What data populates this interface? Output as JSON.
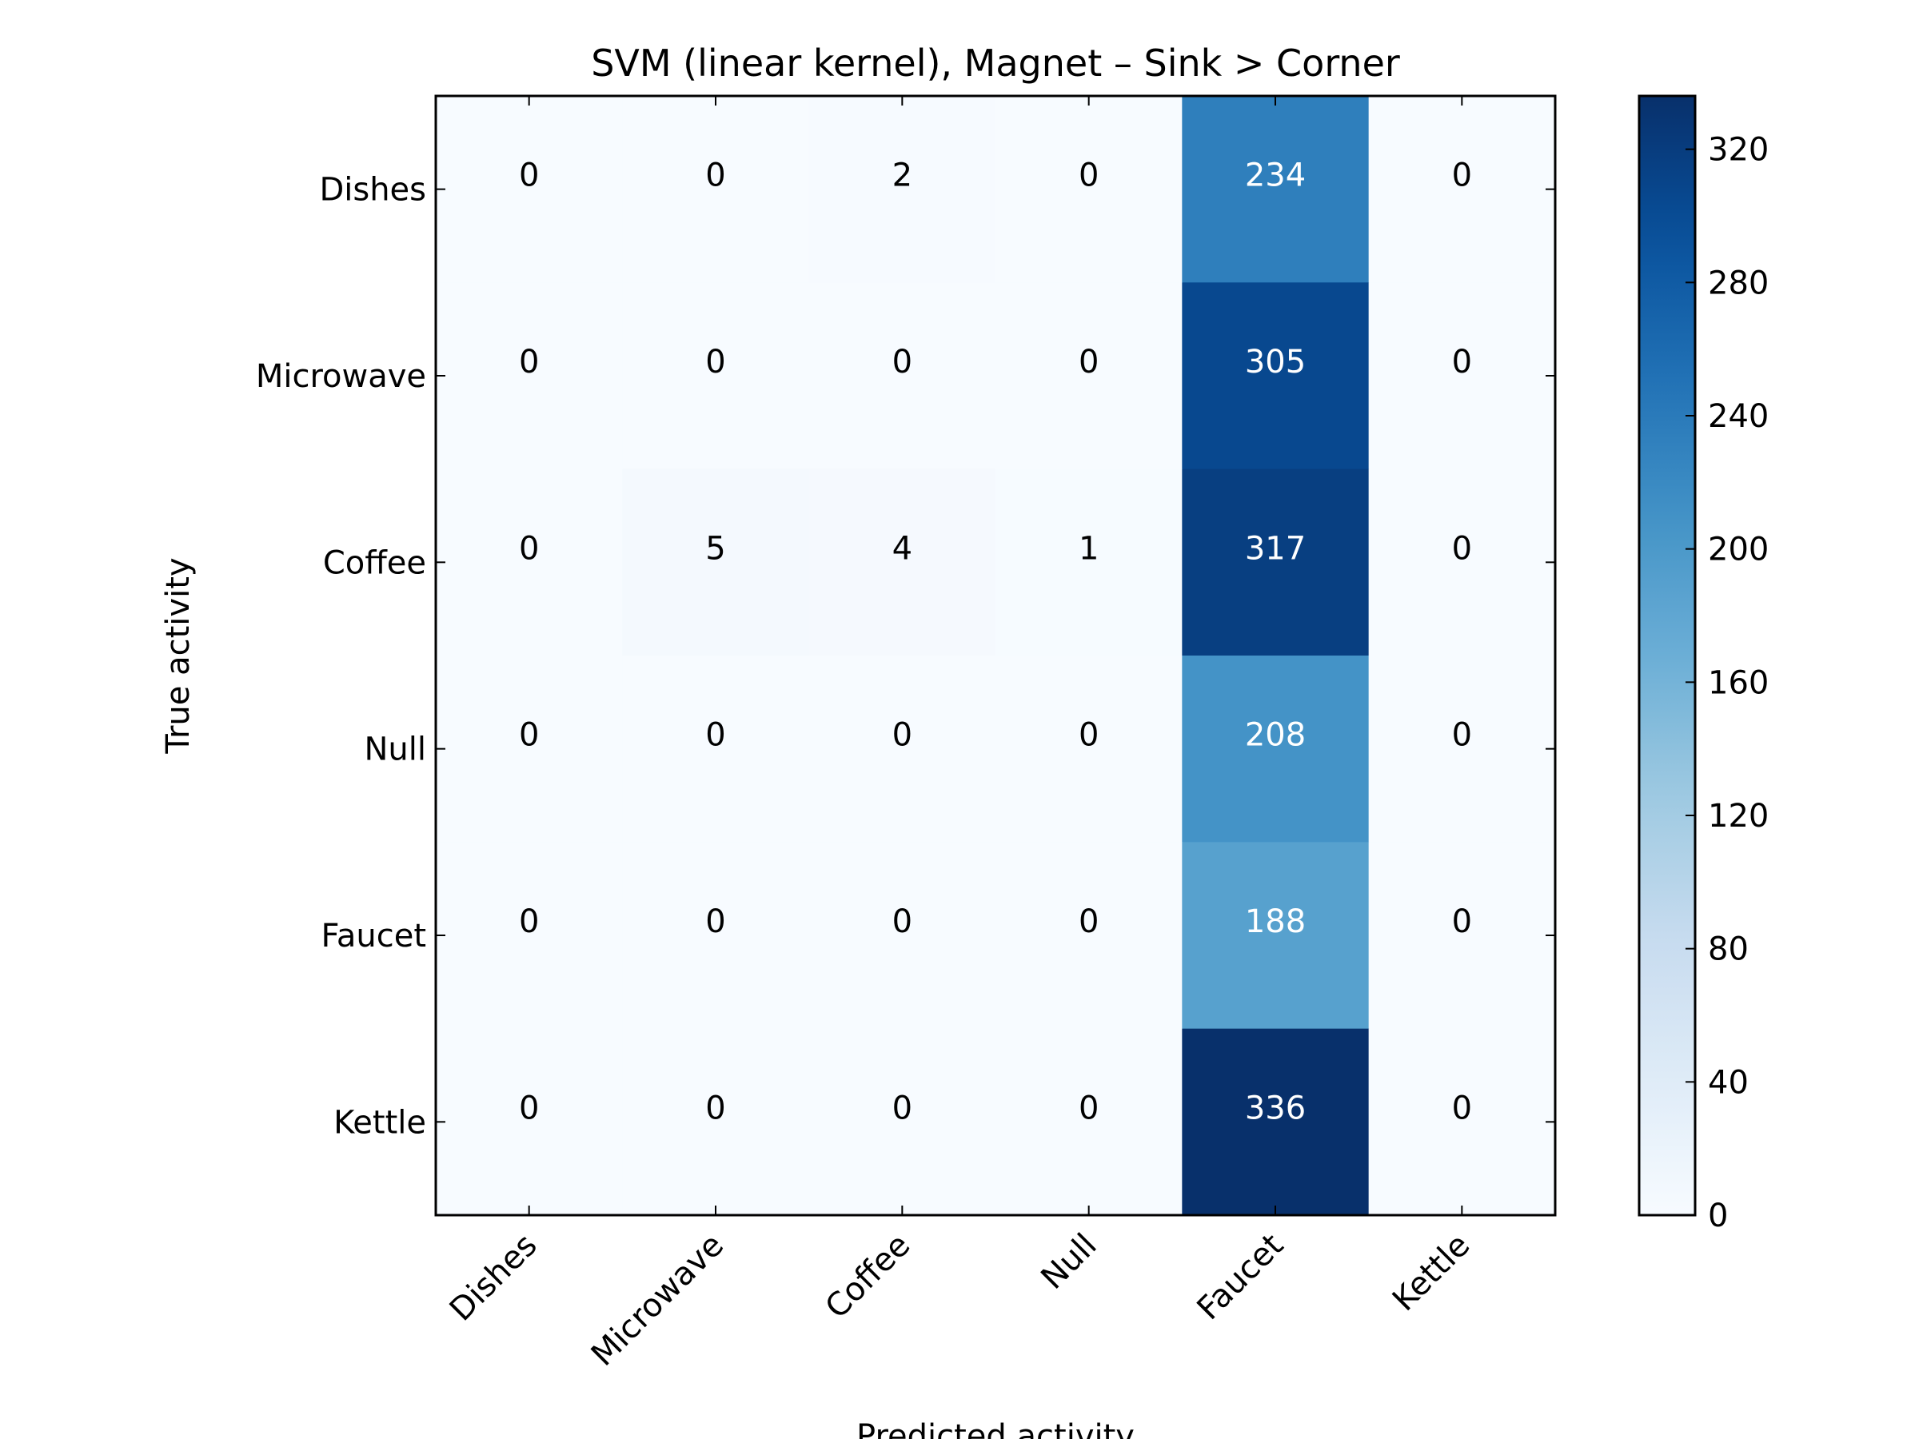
{
  "chart_data": {
    "type": "heatmap",
    "title": "SVM (linear kernel), Magnet – Sink > Corner",
    "xlabel": "Predicted activity",
    "ylabel": "True activity",
    "x_categories": [
      "Dishes",
      "Microwave",
      "Coffee",
      "Null",
      "Faucet",
      "Kettle"
    ],
    "y_categories": [
      "Dishes",
      "Microwave",
      "Coffee",
      "Null",
      "Faucet",
      "Kettle"
    ],
    "values": [
      [
        0,
        0,
        2,
        0,
        234,
        0
      ],
      [
        0,
        0,
        0,
        0,
        305,
        0
      ],
      [
        0,
        5,
        4,
        1,
        317,
        0
      ],
      [
        0,
        0,
        0,
        0,
        208,
        0
      ],
      [
        0,
        0,
        0,
        0,
        188,
        0
      ],
      [
        0,
        0,
        0,
        0,
        336,
        0
      ]
    ],
    "colormap": "Blues",
    "colorbar": {
      "range": [
        0,
        336
      ],
      "ticks": [
        0,
        40,
        80,
        120,
        160,
        200,
        240,
        280,
        320
      ],
      "tick_labels": [
        "0",
        "40",
        "80",
        "120",
        "160",
        "200",
        "240",
        "280",
        "320"
      ]
    },
    "colors": {
      "low": "#f7fbff",
      "high": "#08306b",
      "dark_text": "#000000",
      "light_text": "#ffffff"
    }
  }
}
